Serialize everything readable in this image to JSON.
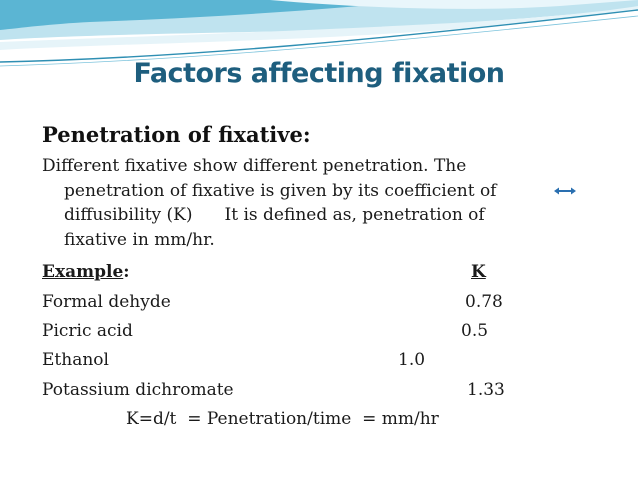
{
  "slide": {
    "title": "Factors affecting fixation",
    "heading": "Penetration of fixative:",
    "paragraph": {
      "line1": "Different fixative show different penetration. The",
      "line2": "penetration of fixative is given by its coefficient of",
      "line3a": "diffusibility (K)",
      "line3b": "It is defined as, penetration of",
      "line4": "fixative in mm/hr."
    },
    "example_label": "Example",
    "example_colon": ":",
    "k_header": "K",
    "rows": [
      {
        "name": " Formal dehyde",
        "value": "0.78"
      },
      {
        "name": "Picric acid",
        "value": "0.5"
      },
      {
        "name": "Ethanol",
        "value": "1.0"
      },
      {
        "name": "Potassium dichromate",
        "value": "1.33"
      }
    ],
    "formula": "K=d/t  = Penetration/time  = mm/hr"
  },
  "colors": {
    "title": "#1e5e7e",
    "swoosh_dark": "#2f8fb3",
    "swoosh_light": "#a9d6e6",
    "arrow": "#2a6fb0"
  },
  "icons": {
    "arrow": "double-arrow-icon"
  }
}
